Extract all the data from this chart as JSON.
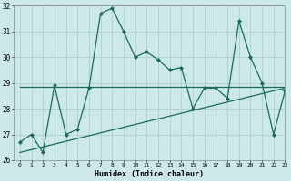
{
  "xlabel": "Humidex (Indice chaleur)",
  "line1_x": [
    0,
    1,
    2,
    3,
    4,
    5,
    6,
    7,
    8,
    9,
    10,
    11,
    12,
    13,
    14,
    15,
    16,
    17,
    18,
    19,
    20,
    21,
    22,
    23
  ],
  "line1_y": [
    26.7,
    27.0,
    26.3,
    28.9,
    27.0,
    27.2,
    28.8,
    31.7,
    31.9,
    31.0,
    30.0,
    30.2,
    29.9,
    29.5,
    29.6,
    28.0,
    28.8,
    28.8,
    28.4,
    31.4,
    30.0,
    29.0,
    27.0,
    28.7
  ],
  "line2_x": [
    0,
    23
  ],
  "line2_y": [
    28.85,
    28.85
  ],
  "line3_x": [
    0,
    23
  ],
  "line3_y": [
    26.3,
    28.8
  ],
  "ylim": [
    26,
    32
  ],
  "xlim": [
    -0.5,
    23
  ],
  "yticks": [
    26,
    27,
    28,
    29,
    30,
    31,
    32
  ],
  "xticks": [
    0,
    1,
    2,
    3,
    4,
    5,
    6,
    7,
    8,
    9,
    10,
    11,
    12,
    13,
    14,
    15,
    16,
    17,
    18,
    19,
    20,
    21,
    22,
    23
  ],
  "line_color": "#1a6b5a",
  "bg_color": "#cce8e8",
  "grid_color": "#aacccc"
}
